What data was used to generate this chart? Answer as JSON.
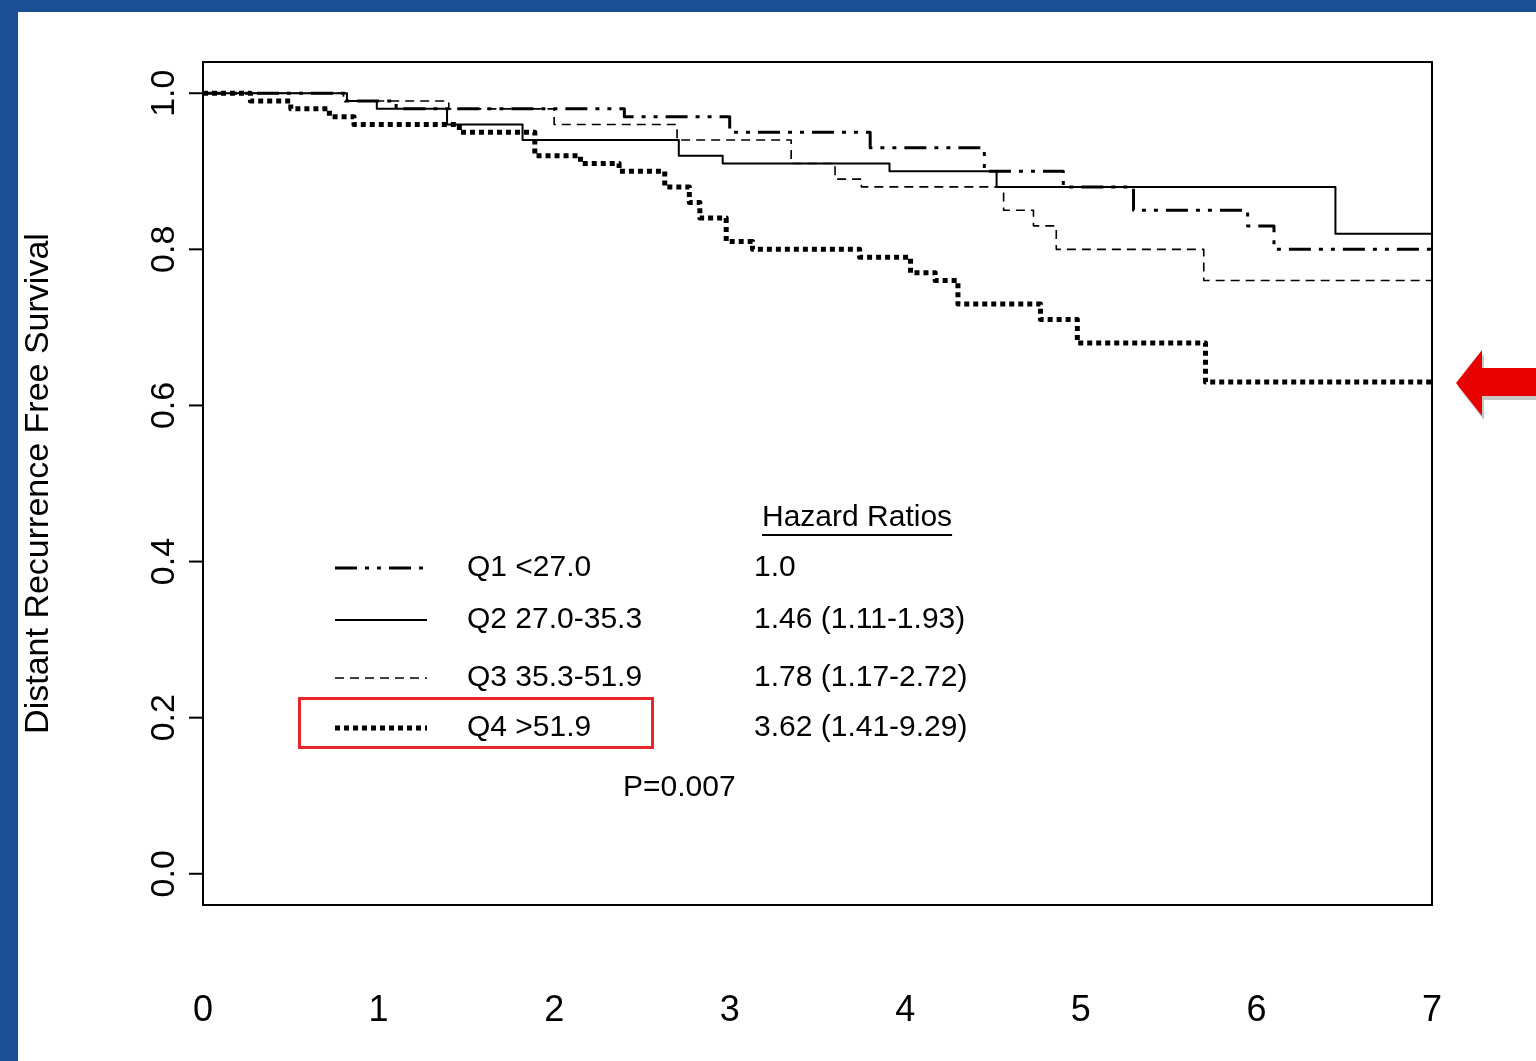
{
  "chart_data": {
    "type": "step",
    "ylabel": "Distant Recurrence Free Survival",
    "xlim": [
      0,
      7
    ],
    "xticks": [
      0,
      1,
      2,
      3,
      4,
      5,
      6,
      7
    ],
    "ylim": [
      -0.04,
      1.04
    ],
    "yticks": [
      {
        "value": 0,
        "label": "0.0"
      },
      0.2,
      0.4,
      0.6,
      0.8,
      {
        "value": 1,
        "label": "1.0"
      }
    ],
    "grid": false,
    "legend": "bottom left",
    "annotations": [
      "Hazard Ratios",
      "1.0",
      "1.46 (1.11-1.93)",
      "1.78 (1.17-2.72)",
      "3.62 (1.41-9.29)",
      "P=0.007"
    ],
    "series": [
      {
        "name": "Q1 <27.0",
        "color": "#000000",
        "line_style": "dashdot",
        "x": [
          0,
          0.81,
          1.1,
          2.4,
          3.0,
          3.8,
          4.45,
          4.9,
          5.3,
          5.95,
          6.1,
          7
        ],
        "values": [
          1.0,
          0.99,
          0.98,
          0.97,
          0.95,
          0.93,
          0.9,
          0.88,
          0.85,
          0.83,
          0.8,
          0.8
        ]
      },
      {
        "name": "Q2 27.0-35.3",
        "color": "#000000",
        "line_style": "solid",
        "x": [
          0,
          0.82,
          0.99,
          1.39,
          1.82,
          2.71,
          2.96,
          3.91,
          4.52,
          6.45,
          7
        ],
        "values": [
          1.0,
          0.99,
          0.98,
          0.96,
          0.94,
          0.92,
          0.91,
          0.9,
          0.88,
          0.82,
          0.82
        ]
      },
      {
        "name": "Q3 35.3-51.9",
        "color": "#000000",
        "line_style": "dashed",
        "x": [
          0,
          0.8,
          1.4,
          2.0,
          2.7,
          3.35,
          3.6,
          3.75,
          4.56,
          4.73,
          4.86,
          5.7,
          7
        ],
        "values": [
          1.0,
          0.99,
          0.98,
          0.96,
          0.94,
          0.91,
          0.89,
          0.88,
          0.85,
          0.83,
          0.8,
          0.76,
          0.76
        ]
      },
      {
        "name": "Q4 >51.9",
        "color": "#000000",
        "line_style": "dotted",
        "x": [
          0,
          0.27,
          0.5,
          0.72,
          0.86,
          1.46,
          1.89,
          2.15,
          2.37,
          2.63,
          2.77,
          2.83,
          2.98,
          3.13,
          3.74,
          4.03,
          4.17,
          4.3,
          4.77,
          4.98,
          5.71,
          7
        ],
        "values": [
          1.0,
          0.99,
          0.98,
          0.97,
          0.96,
          0.95,
          0.92,
          0.91,
          0.9,
          0.88,
          0.86,
          0.84,
          0.81,
          0.8,
          0.79,
          0.77,
          0.76,
          0.73,
          0.71,
          0.68,
          0.63,
          0.63
        ]
      }
    ]
  }
}
